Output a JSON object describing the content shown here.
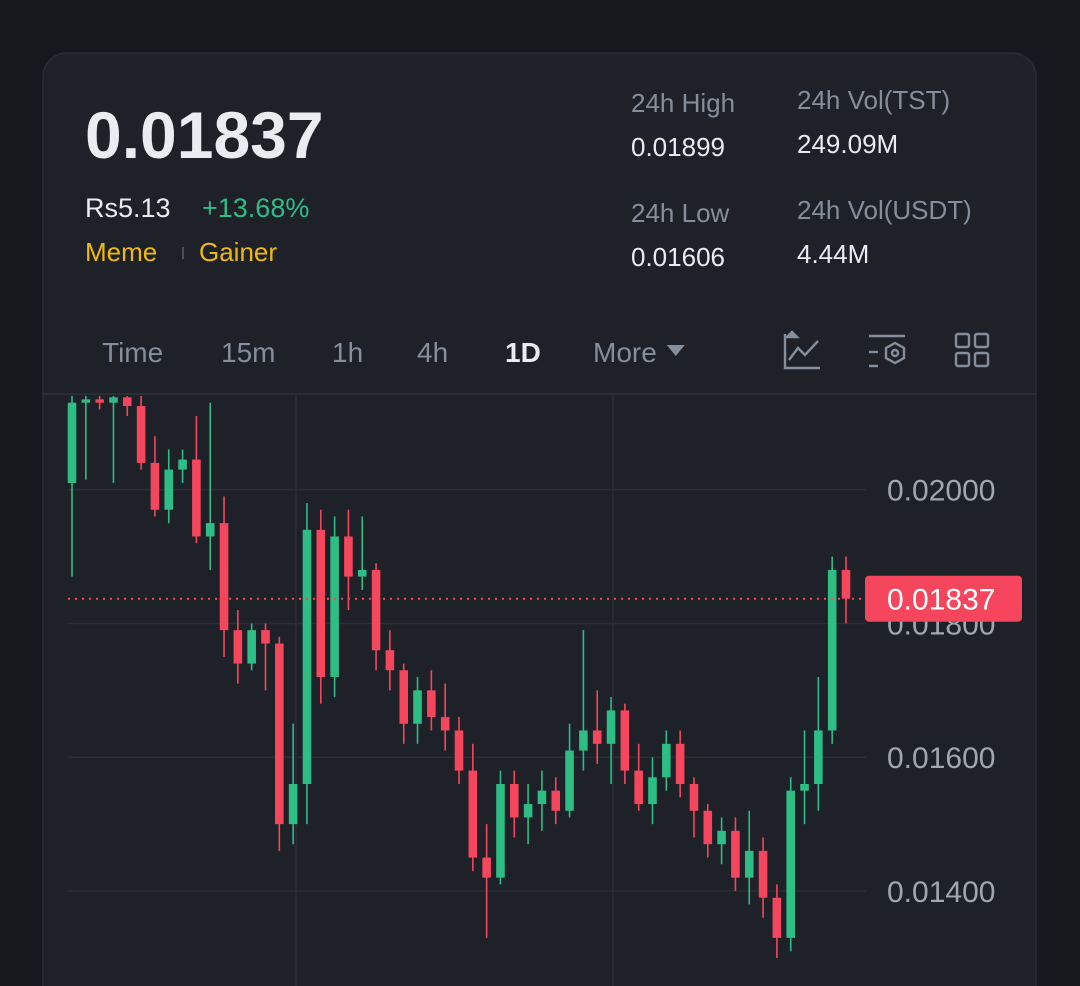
{
  "header": {
    "price": "0.01837",
    "fiat_price": "Rs5.13",
    "change": "+13.68%",
    "tags": [
      "Meme",
      "Gainer"
    ],
    "stats": [
      {
        "label": "24h High",
        "value": "0.01899"
      },
      {
        "label": "24h Vol(TST)",
        "value": "249.09M"
      },
      {
        "label": "24h Low",
        "value": "0.01606"
      },
      {
        "label": "24h Vol(USDT)",
        "value": "4.44M"
      }
    ]
  },
  "tabs": {
    "items": [
      "Time",
      "15m",
      "1h",
      "4h",
      "1D",
      "More"
    ],
    "active": 4
  },
  "chart_data": {
    "type": "candlestick",
    "ylim": [
      0.01258,
      0.02143
    ],
    "yticks": [
      {
        "value": 0.014,
        "label": "0.01400"
      },
      {
        "value": 0.016,
        "label": "0.01600"
      },
      {
        "value": 0.018,
        "label": "0.01800"
      },
      {
        "value": 0.02,
        "label": "0.02000"
      }
    ],
    "last_price": {
      "value": 0.01837,
      "label": "0.01837"
    },
    "up_color": "#2ebd85",
    "down_color": "#f6465d",
    "open": [
      0.0201,
      0.0213,
      0.02135,
      0.0213,
      0.02138,
      0.02125,
      0.0204,
      0.0197,
      0.0203,
      0.02045,
      0.0193,
      0.0195,
      0.0179,
      0.0174,
      0.0179,
      0.0177,
      0.015,
      0.0156,
      0.0194,
      0.0172,
      0.0193,
      0.0187,
      0.0188,
      0.0176,
      0.0173,
      0.0165,
      0.017,
      0.0166,
      0.0164,
      0.0158,
      0.0145,
      0.0142,
      0.0156,
      0.0151,
      0.0153,
      0.0155,
      0.0152,
      0.0161,
      0.0164,
      0.0162,
      0.0167,
      0.0158,
      0.0153,
      0.0157,
      0.0162,
      0.0156,
      0.0152,
      0.0147,
      0.0149,
      0.0142,
      0.0146,
      0.0139,
      0.0133,
      0.0155,
      0.0156,
      0.0164,
      0.0188
    ],
    "high": [
      0.0214,
      0.0214,
      0.0214,
      0.0214,
      0.0214,
      0.0214,
      0.0208,
      0.0206,
      0.0206,
      0.0211,
      0.0213,
      0.0199,
      0.0182,
      0.018,
      0.018,
      0.0178,
      0.0165,
      0.0198,
      0.0197,
      0.0196,
      0.0197,
      0.0196,
      0.0189,
      0.0179,
      0.0174,
      0.0172,
      0.0173,
      0.0171,
      0.0166,
      0.0162,
      0.015,
      0.0158,
      0.0158,
      0.0156,
      0.0158,
      0.0157,
      0.0165,
      0.0179,
      0.017,
      0.0169,
      0.0168,
      0.0162,
      0.016,
      0.0164,
      0.0164,
      0.0157,
      0.0153,
      0.0151,
      0.0151,
      0.0152,
      0.0148,
      0.0141,
      0.0157,
      0.0164,
      0.0172,
      0.019,
      0.019
    ],
    "low": [
      0.0187,
      0.02015,
      0.0212,
      0.0201,
      0.0211,
      0.0203,
      0.0196,
      0.0195,
      0.0201,
      0.0192,
      0.0188,
      0.0175,
      0.0171,
      0.0173,
      0.017,
      0.0146,
      0.0147,
      0.015,
      0.0168,
      0.0169,
      0.0182,
      0.0185,
      0.0173,
      0.017,
      0.0162,
      0.0162,
      0.0164,
      0.0161,
      0.0156,
      0.0143,
      0.0133,
      0.0141,
      0.0148,
      0.0147,
      0.0149,
      0.015,
      0.0151,
      0.0158,
      0.0159,
      0.0156,
      0.0156,
      0.0152,
      0.015,
      0.0155,
      0.0154,
      0.0148,
      0.0145,
      0.0144,
      0.014,
      0.0138,
      0.0136,
      0.013,
      0.0131,
      0.015,
      0.0152,
      0.0162,
      0.018
    ],
    "close": [
      0.0213,
      0.02135,
      0.0213,
      0.02138,
      0.02125,
      0.0204,
      0.0197,
      0.0203,
      0.02045,
      0.0193,
      0.0195,
      0.0179,
      0.0174,
      0.0179,
      0.0177,
      0.015,
      0.0156,
      0.0194,
      0.0172,
      0.0193,
      0.0187,
      0.0188,
      0.0176,
      0.0173,
      0.0165,
      0.017,
      0.0166,
      0.0164,
      0.0158,
      0.0145,
      0.0142,
      0.0156,
      0.0151,
      0.0153,
      0.0155,
      0.0152,
      0.0161,
      0.0164,
      0.0162,
      0.0167,
      0.0158,
      0.0153,
      0.0157,
      0.0162,
      0.0156,
      0.0152,
      0.0147,
      0.0149,
      0.0142,
      0.0146,
      0.0139,
      0.0133,
      0.0155,
      0.0156,
      0.0164,
      0.0188,
      0.01837
    ]
  }
}
